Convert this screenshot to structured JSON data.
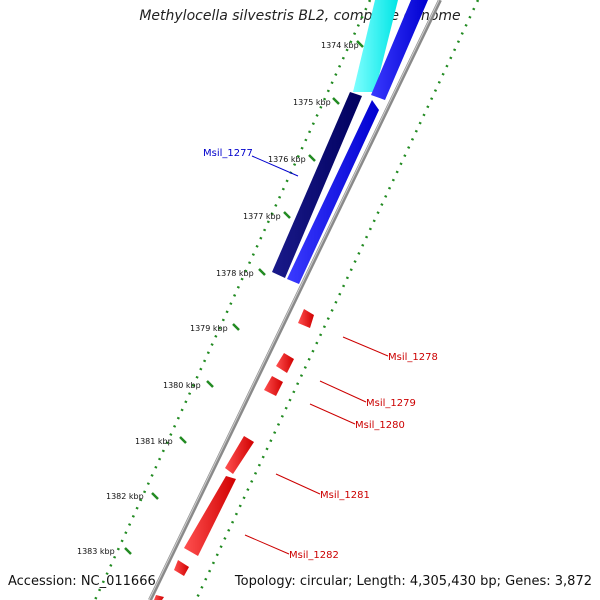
{
  "title": "Methylocella silvestris BL2, complete genome",
  "accession_text": "Accession: NC_011666",
  "summary_text": "Topology: circular; Length: 4,305,430 bp; Genes: 3,872",
  "colors": {
    "backbone": "#808080",
    "forward_cyan": "#00ffff",
    "forward_blue": "#0000ff",
    "forward_navy": "#00008b",
    "reverse_red": "#ff0000",
    "tick_green": "#228b22",
    "label_blue": "#0000cc",
    "label_red": "#cc0000"
  },
  "scale_ticks": [
    "1374 kbp",
    "1375 kbp",
    "1376 kbp",
    "1377 kbp",
    "1378 kbp",
    "1379 kbp",
    "1380 kbp",
    "1381 kbp",
    "1382 kbp",
    "1383 kbp"
  ],
  "gene_labels": [
    {
      "text": "Msil_1277",
      "strand": "forward"
    },
    {
      "text": "Msil_1278",
      "strand": "reverse"
    },
    {
      "text": "Msil_1279",
      "strand": "reverse"
    },
    {
      "text": "Msil_1280",
      "strand": "reverse"
    },
    {
      "text": "Msil_1281",
      "strand": "reverse"
    },
    {
      "text": "Msil_1282",
      "strand": "reverse"
    }
  ]
}
